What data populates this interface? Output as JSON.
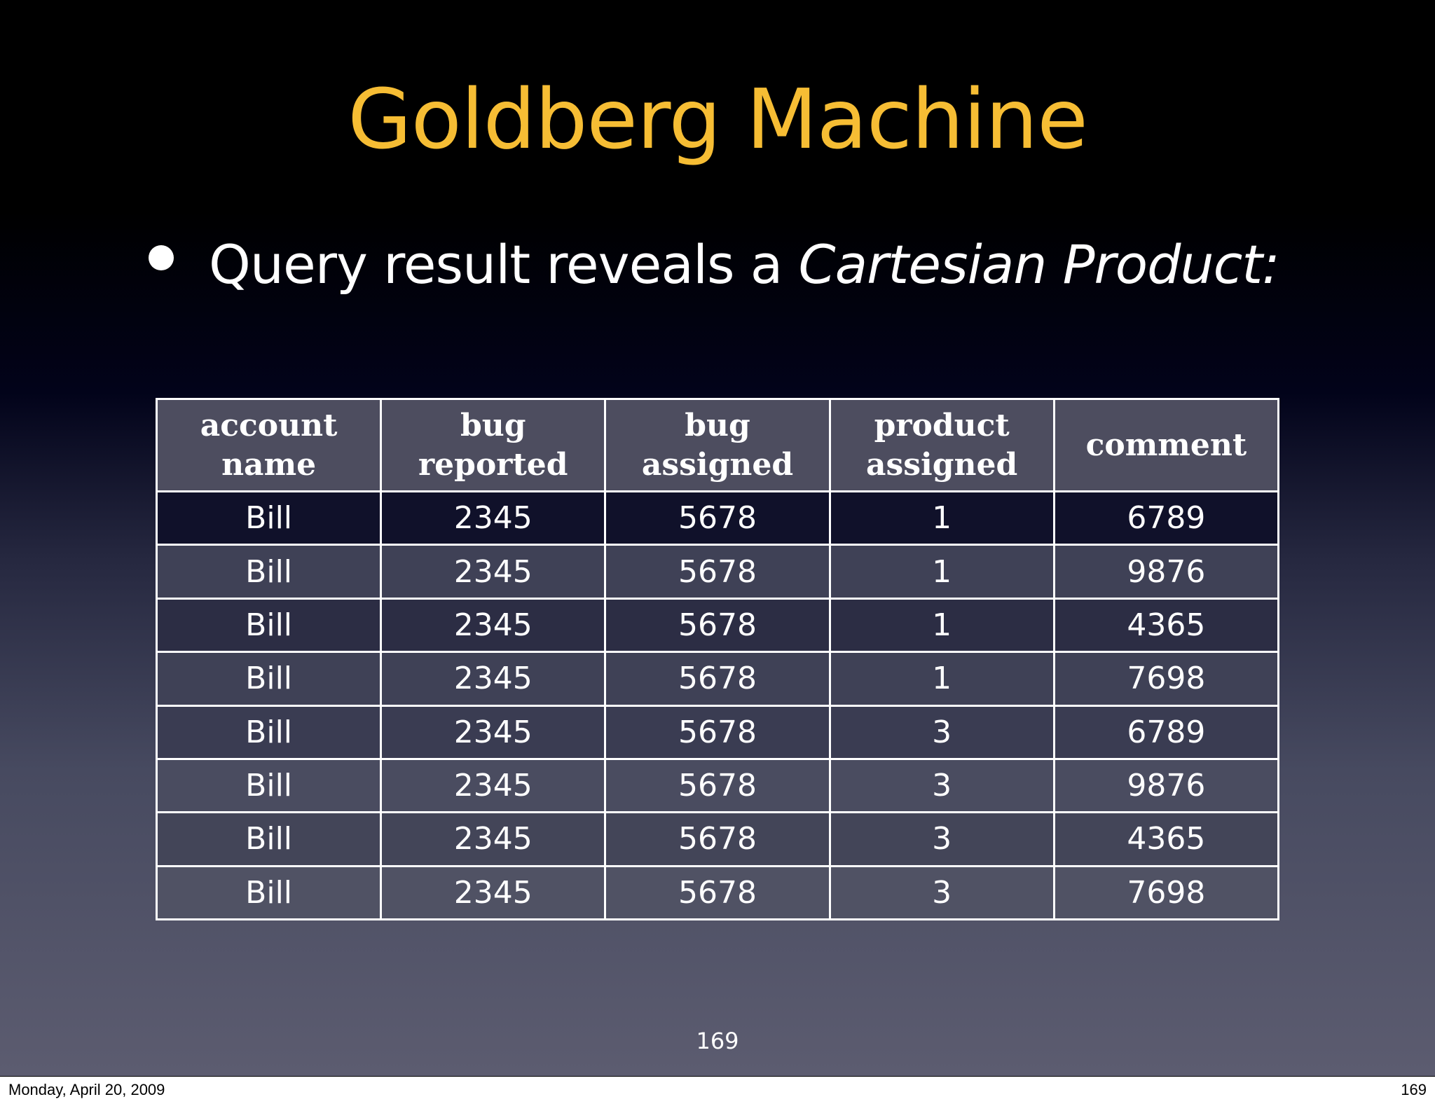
{
  "slide": {
    "title": "Goldberg Machine",
    "bullet": {
      "text_plain": "Query result reveals a ",
      "text_emphasis": "Cartesian Product:"
    },
    "slide_number": "169"
  },
  "table": {
    "headers": [
      [
        "account",
        "name"
      ],
      [
        "bug",
        "reported"
      ],
      [
        "bug",
        "assigned"
      ],
      [
        "product",
        "assigned"
      ],
      [
        "comment"
      ]
    ],
    "rows": [
      [
        "Bill",
        "2345",
        "5678",
        "1",
        "6789"
      ],
      [
        "Bill",
        "2345",
        "5678",
        "1",
        "9876"
      ],
      [
        "Bill",
        "2345",
        "5678",
        "1",
        "4365"
      ],
      [
        "Bill",
        "2345",
        "5678",
        "1",
        "7698"
      ],
      [
        "Bill",
        "2345",
        "5678",
        "3",
        "6789"
      ],
      [
        "Bill",
        "2345",
        "5678",
        "3",
        "9876"
      ],
      [
        "Bill",
        "2345",
        "5678",
        "3",
        "4365"
      ],
      [
        "Bill",
        "2345",
        "5678",
        "3",
        "7698"
      ]
    ]
  },
  "footer": {
    "date": "Monday, April 20, 2009",
    "page": "169"
  }
}
